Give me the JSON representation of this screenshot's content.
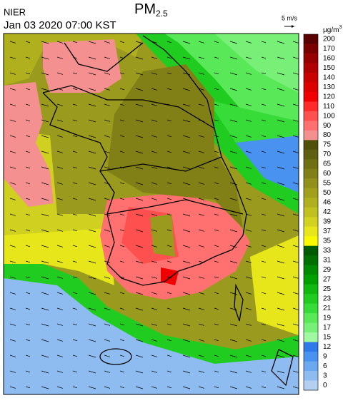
{
  "header": {
    "source": "NIER",
    "timestamp": "Jan 03 2020 07:00 KST",
    "title": "PM",
    "title_subscript": "2.5",
    "wind_scale": "5 m/s"
  },
  "legend": {
    "unit": "µg/m",
    "unit_superscript": "3",
    "levels": [
      {
        "label": 200,
        "color": "#5a0000"
      },
      {
        "label": 170,
        "color": "#7a0000"
      },
      {
        "label": 160,
        "color": "#960000"
      },
      {
        "label": 150,
        "color": "#b00000"
      },
      {
        "label": 140,
        "color": "#c80000"
      },
      {
        "label": 130,
        "color": "#dc0000"
      },
      {
        "label": 120,
        "color": "#f00000"
      },
      {
        "label": 110,
        "color": "#ff2a2a"
      },
      {
        "label": 100,
        "color": "#ff5050"
      },
      {
        "label": 90,
        "color": "#ff7070"
      },
      {
        "label": 80,
        "color": "#f59090"
      },
      {
        "label": 75,
        "color": "#50500a"
      },
      {
        "label": 70,
        "color": "#606010"
      },
      {
        "label": 65,
        "color": "#707012"
      },
      {
        "label": 60,
        "color": "#808016"
      },
      {
        "label": 55,
        "color": "#90901a"
      },
      {
        "label": 50,
        "color": "#a0a01c"
      },
      {
        "label": 46,
        "color": "#b0b01e"
      },
      {
        "label": 42,
        "color": "#c0c020"
      },
      {
        "label": 39,
        "color": "#d2d220"
      },
      {
        "label": 37,
        "color": "#e6e61a"
      },
      {
        "label": 35,
        "color": "#f8f800"
      },
      {
        "label": 33,
        "color": "#005a00"
      },
      {
        "label": 31,
        "color": "#007000"
      },
      {
        "label": 29,
        "color": "#008a00"
      },
      {
        "label": 27,
        "color": "#00a000"
      },
      {
        "label": 25,
        "color": "#10b810"
      },
      {
        "label": 23,
        "color": "#20cc20"
      },
      {
        "label": 21,
        "color": "#38dc38"
      },
      {
        "label": 19,
        "color": "#58e858"
      },
      {
        "label": 17,
        "color": "#78f078"
      },
      {
        "label": 15,
        "color": "#a0f8a0"
      },
      {
        "label": 12,
        "color": "#2f7ae8"
      },
      {
        "label": 9,
        "color": "#4a92f0"
      },
      {
        "label": 6,
        "color": "#6aa8f0"
      },
      {
        "label": 3,
        "color": "#8ebcf0"
      },
      {
        "label": 0,
        "color": "#b4d0f0"
      }
    ]
  }
}
